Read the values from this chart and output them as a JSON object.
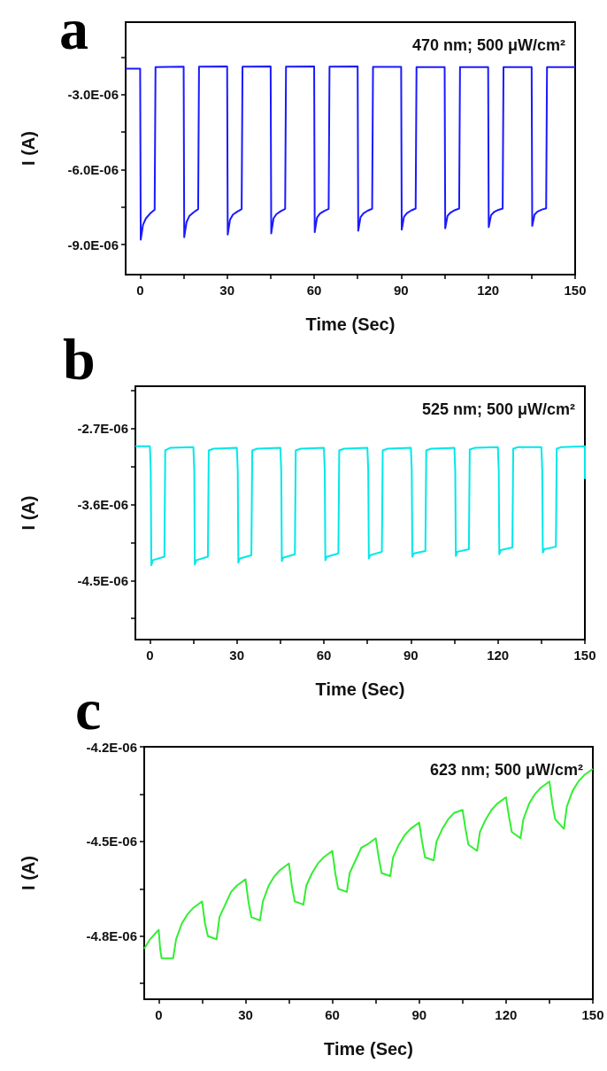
{
  "chart_data": [
    {
      "type": "line",
      "title": "a",
      "xlabel": "Time (Sec)",
      "ylabel": "I (A)",
      "annotations": [
        "470 nm; 500 μW/cm²"
      ],
      "xlim": [
        -5,
        150
      ],
      "xticks": [
        0,
        {
          "value": 15,
          "label": null
        },
        30,
        {
          "value": 45,
          "label": null
        },
        60,
        {
          "value": 75,
          "label": null
        },
        90,
        {
          "value": 105,
          "label": null
        },
        120,
        {
          "value": 135,
          "label": null
        },
        150
      ],
      "ylim": [
        -1.02e-05,
        -1e-07
      ],
      "yticks": [
        {
          "value": -1.5e-06,
          "label": null
        },
        {
          "value": -3e-06,
          "label": "-3.0E-06"
        },
        {
          "value": -4.5e-06,
          "label": null
        },
        {
          "value": -6e-06,
          "label": "-6.0E-06"
        },
        {
          "value": -7.5e-06,
          "label": null
        },
        {
          "value": -9e-06,
          "label": "-9.0E-06"
        }
      ],
      "grid": false,
      "series": [
        {
          "color": "#1a1aff",
          "x": [
            -5,
            0,
            0.2,
            1,
            2,
            3.5,
            5,
            5.3,
            15,
            15.2,
            16,
            17,
            18.5,
            20,
            20.3,
            30,
            30.2,
            31,
            32,
            33.5,
            35,
            35.3,
            45,
            45.2,
            46,
            47,
            48.5,
            50,
            50.3,
            60,
            60.2,
            61,
            62,
            63.5,
            65,
            65.3,
            75,
            75.2,
            76,
            77,
            78.5,
            80,
            80.3,
            90,
            90.2,
            91,
            92,
            93.5,
            95,
            95.3,
            105,
            105.2,
            106,
            107,
            108.5,
            110,
            110.3,
            120,
            120.2,
            121,
            122,
            123.5,
            125,
            125.3,
            135,
            135.2,
            136,
            137,
            138.5,
            140,
            140.3,
            150
          ],
          "values": [
            -1.96e-06,
            -1.96e-06,
            -8.8e-06,
            -8.2e-06,
            -7.95e-06,
            -7.75e-06,
            -7.6e-06,
            -1.9e-06,
            -1.88e-06,
            -8.7e-06,
            -8.1e-06,
            -7.85e-06,
            -7.7e-06,
            -7.58e-06,
            -1.88e-06,
            -1.87e-06,
            -8.6e-06,
            -8e-06,
            -7.8e-06,
            -7.68e-06,
            -7.58e-06,
            -1.88e-06,
            -1.87e-06,
            -8.55e-06,
            -7.95e-06,
            -7.78e-06,
            -7.66e-06,
            -7.57e-06,
            -1.88e-06,
            -1.87e-06,
            -8.5e-06,
            -7.92e-06,
            -7.76e-06,
            -7.65e-06,
            -7.57e-06,
            -1.88e-06,
            -1.87e-06,
            -8.45e-06,
            -7.9e-06,
            -7.75e-06,
            -7.64e-06,
            -7.57e-06,
            -1.89e-06,
            -1.89e-06,
            -8.4e-06,
            -7.88e-06,
            -7.74e-06,
            -7.63e-06,
            -7.56e-06,
            -1.9e-06,
            -1.9e-06,
            -8.35e-06,
            -7.85e-06,
            -7.72e-06,
            -7.62e-06,
            -7.56e-06,
            -1.9e-06,
            -1.9e-06,
            -8.3e-06,
            -7.82e-06,
            -7.7e-06,
            -7.61e-06,
            -7.56e-06,
            -1.9e-06,
            -1.9e-06,
            -8.25e-06,
            -7.8e-06,
            -7.68e-06,
            -7.6e-06,
            -7.55e-06,
            -1.9e-06,
            -1.9e-06
          ]
        }
      ]
    },
    {
      "type": "line",
      "title": "b",
      "xlabel": "Time (Sec)",
      "ylabel": "I (A)",
      "annotations": [
        "525 nm; 500 μW/cm²"
      ],
      "xlim": [
        -5,
        150
      ],
      "xticks": [
        0,
        {
          "value": 15,
          "label": null
        },
        30,
        {
          "value": 45,
          "label": null
        },
        60,
        {
          "value": 75,
          "label": null
        },
        90,
        {
          "value": 105,
          "label": null
        },
        120,
        {
          "value": 135,
          "label": null
        },
        150
      ],
      "ylim": [
        -5.2e-06,
        -2.2e-06
      ],
      "yticks": [
        {
          "value": -2.25e-06,
          "label": null
        },
        {
          "value": -2.7e-06,
          "label": "-2.7E-06"
        },
        {
          "value": -3.15e-06,
          "label": null
        },
        {
          "value": -3.6e-06,
          "label": "-3.6E-06"
        },
        {
          "value": -4.05e-06,
          "label": null
        },
        {
          "value": -4.5e-06,
          "label": "-4.5E-06"
        },
        {
          "value": -4.95e-06,
          "label": null
        }
      ],
      "grid": false,
      "series": [
        {
          "color": "#00e8e8",
          "x": [
            -5,
            0,
            0.3,
            0.5,
            1,
            5,
            5.3,
            7,
            15,
            15.3,
            15.5,
            16,
            20,
            20.3,
            22,
            30,
            30.3,
            30.5,
            31,
            35,
            35.3,
            37,
            45,
            45.3,
            45.5,
            46,
            50,
            50.3,
            52,
            60,
            60.3,
            60.5,
            61,
            65,
            65.3,
            67,
            75,
            75.3,
            75.5,
            76,
            80,
            80.3,
            82,
            90,
            90.3,
            90.5,
            91,
            95,
            95.3,
            97,
            105,
            105.3,
            105.5,
            106,
            110,
            110.3,
            112,
            120,
            120.3,
            120.5,
            121,
            125,
            125.3,
            127,
            135,
            135.3,
            135.5,
            136,
            140,
            140.3,
            142,
            150,
            150
          ],
          "values": [
            -2.91e-06,
            -2.91e-06,
            -3.2e-06,
            -4.32e-06,
            -4.26e-06,
            -4.22e-06,
            -2.96e-06,
            -2.93e-06,
            -2.92e-06,
            -3.2e-06,
            -4.31e-06,
            -4.26e-06,
            -4.22e-06,
            -2.96e-06,
            -2.94e-06,
            -2.93e-06,
            -3.2e-06,
            -4.29e-06,
            -4.24e-06,
            -4.2e-06,
            -2.96e-06,
            -2.94e-06,
            -2.93e-06,
            -3.2e-06,
            -4.27e-06,
            -4.23e-06,
            -4.19e-06,
            -2.96e-06,
            -2.94e-06,
            -2.93e-06,
            -3.2e-06,
            -4.26e-06,
            -4.22e-06,
            -4.18e-06,
            -2.96e-06,
            -2.94e-06,
            -2.93e-06,
            -3.2e-06,
            -4.24e-06,
            -4.2e-06,
            -4.16e-06,
            -2.96e-06,
            -2.94e-06,
            -2.93e-06,
            -3.2e-06,
            -4.22e-06,
            -4.18e-06,
            -4.15e-06,
            -2.96e-06,
            -2.94e-06,
            -2.93e-06,
            -3.2e-06,
            -4.21e-06,
            -4.16e-06,
            -4.13e-06,
            -2.95e-06,
            -2.93e-06,
            -2.92e-06,
            -3.2e-06,
            -4.19e-06,
            -4.14e-06,
            -4.11e-06,
            -2.94e-06,
            -2.92e-06,
            -2.92e-06,
            -3.2e-06,
            -4.17e-06,
            -4.13e-06,
            -4.1e-06,
            -2.94e-06,
            -2.92e-06,
            -2.91e-06,
            -3.3e-06
          ]
        }
      ]
    },
    {
      "type": "line",
      "title": "c",
      "xlabel": "Time (Sec)",
      "ylabel": "I (A)",
      "annotations": [
        "623 nm; 500 μW/cm²"
      ],
      "xlim": [
        -5,
        150
      ],
      "xticks": [
        0,
        {
          "value": 15,
          "label": null
        },
        30,
        {
          "value": 45,
          "label": null
        },
        60,
        {
          "value": 75,
          "label": null
        },
        90,
        {
          "value": 105,
          "label": null
        },
        120,
        {
          "value": 135,
          "label": null
        },
        150
      ],
      "ylim": [
        -5e-06,
        -4.2e-06
      ],
      "yticks": [
        {
          "value": -4.2e-06,
          "label": "-4.2E-06"
        },
        {
          "value": -4.35e-06,
          "label": null
        },
        {
          "value": -4.5e-06,
          "label": "-4.5E-06"
        },
        {
          "value": -4.65e-06,
          "label": null
        },
        {
          "value": -4.8e-06,
          "label": "-4.8E-06"
        },
        {
          "value": -4.95e-06,
          "label": null
        }
      ],
      "grid": false,
      "series": [
        {
          "color": "#33ee33",
          "x": [
            -5,
            -3,
            -1,
            0,
            0.5,
            1,
            5,
            6,
            8,
            10,
            12,
            15,
            16,
            17,
            20,
            21,
            23,
            25,
            27,
            30,
            31,
            32,
            35,
            36,
            38,
            40,
            42,
            45,
            46,
            47,
            50,
            51,
            53,
            55,
            57,
            60,
            61,
            62,
            65,
            66,
            68,
            70,
            72,
            75,
            76,
            77,
            80,
            81,
            83,
            85,
            87,
            90,
            91,
            92,
            95,
            96,
            98,
            100,
            102,
            105,
            106,
            107,
            110,
            111,
            113,
            115,
            117,
            120,
            121,
            122,
            125,
            126,
            128,
            130,
            132,
            135,
            136,
            137,
            140,
            141,
            143,
            145,
            147,
            150
          ],
          "values": [
            -4.84e-06,
            -4.81e-06,
            -4.79e-06,
            -4.78e-06,
            -4.84e-06,
            -4.87e-06,
            -4.87e-06,
            -4.81e-06,
            -4.76e-06,
            -4.73e-06,
            -4.71e-06,
            -4.69e-06,
            -4.76e-06,
            -4.8e-06,
            -4.81e-06,
            -4.74e-06,
            -4.7e-06,
            -4.66e-06,
            -4.64e-06,
            -4.62e-06,
            -4.69e-06,
            -4.74e-06,
            -4.75e-06,
            -4.69e-06,
            -4.64e-06,
            -4.61e-06,
            -4.59e-06,
            -4.57e-06,
            -4.64e-06,
            -4.69e-06,
            -4.7e-06,
            -4.64e-06,
            -4.6e-06,
            -4.57e-06,
            -4.55e-06,
            -4.53e-06,
            -4.6e-06,
            -4.65e-06,
            -4.66e-06,
            -4.6e-06,
            -4.56e-06,
            -4.52e-06,
            -4.51e-06,
            -4.49e-06,
            -4.55e-06,
            -4.6e-06,
            -4.61e-06,
            -4.55e-06,
            -4.51e-06,
            -4.48e-06,
            -4.46e-06,
            -4.44e-06,
            -4.5e-06,
            -4.55e-06,
            -4.56e-06,
            -4.5e-06,
            -4.46e-06,
            -4.43e-06,
            -4.41e-06,
            -4.4e-06,
            -4.46e-06,
            -4.51e-06,
            -4.53e-06,
            -4.47e-06,
            -4.43e-06,
            -4.4e-06,
            -4.38e-06,
            -4.36e-06,
            -4.42e-06,
            -4.47e-06,
            -4.49e-06,
            -4.43e-06,
            -4.38e-06,
            -4.35e-06,
            -4.33e-06,
            -4.31e-06,
            -4.38e-06,
            -4.43e-06,
            -4.46e-06,
            -4.39e-06,
            -4.34e-06,
            -4.31e-06,
            -4.29e-06,
            -4.27e-06
          ]
        }
      ]
    }
  ]
}
